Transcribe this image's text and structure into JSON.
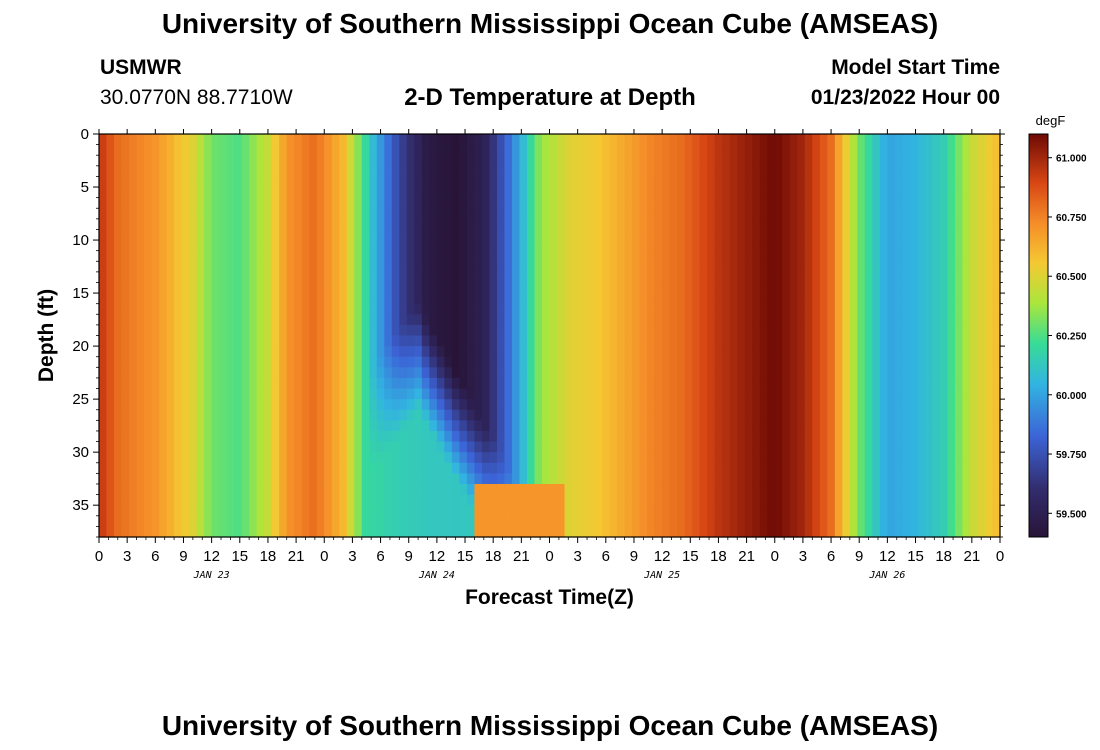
{
  "header": {
    "title": "University of Southern Mississippi Ocean Cube (AMSEAS)",
    "station": "USMWR",
    "coords": "30.0770N  88.7710W",
    "subtitle": "2-D Temperature at Depth",
    "model_start_label": "Model Start Time",
    "model_start_value": "01/23/2022 Hour 00"
  },
  "footer": {
    "title": "University of Southern Mississippi Ocean Cube (AMSEAS)"
  },
  "chart_data": {
    "type": "heatmap",
    "title": "2-D Temperature at Depth",
    "xlabel": "Forecast Time(Z)",
    "ylabel": "Depth (ft)",
    "x_tick_labels": [
      "0",
      "3",
      "6",
      "9",
      "12",
      "15",
      "18",
      "21",
      "0",
      "3",
      "6",
      "9",
      "12",
      "15",
      "18",
      "21",
      "0",
      "3",
      "6",
      "9",
      "12",
      "15",
      "18",
      "21",
      "0",
      "3",
      "6",
      "9",
      "12",
      "15",
      "18",
      "21",
      "0"
    ],
    "x_range_hours": [
      0,
      96
    ],
    "date_labels": [
      {
        "label": "JAN 23",
        "hour": 12
      },
      {
        "label": "JAN 24",
        "hour": 36
      },
      {
        "label": "JAN 25",
        "hour": 60
      },
      {
        "label": "JAN 26",
        "hour": 84
      }
    ],
    "y_tick_labels": [
      "0",
      "5",
      "10",
      "15",
      "20",
      "25",
      "30",
      "35"
    ],
    "y_range_ft": [
      0,
      38
    ],
    "colorbar": {
      "unit": "degF",
      "min": 59.4,
      "max": 61.1,
      "tick_labels": [
        "61.000",
        "60.750",
        "60.500",
        "60.250",
        "60.000",
        "59.750",
        "59.500"
      ],
      "tick_values": [
        61.0,
        60.75,
        60.5,
        60.25,
        60.0,
        59.75,
        59.5
      ]
    },
    "surface_temperature_profile": {
      "hours": [
        0,
        2,
        6,
        10,
        12,
        15,
        18,
        20,
        23,
        26,
        29,
        32,
        35,
        38,
        41,
        44,
        47,
        50,
        53,
        56,
        59,
        62,
        66,
        70,
        72,
        75,
        78,
        81,
        84,
        87,
        90,
        93,
        96
      ],
      "values": [
        60.95,
        60.8,
        60.7,
        60.5,
        60.3,
        60.25,
        60.45,
        60.7,
        60.8,
        60.6,
        60.1,
        59.7,
        59.45,
        59.4,
        59.5,
        59.9,
        60.35,
        60.5,
        60.55,
        60.65,
        60.75,
        60.8,
        60.95,
        61.05,
        61.1,
        61.0,
        60.8,
        60.3,
        60.0,
        60.05,
        60.15,
        60.45,
        60.6
      ]
    }
  }
}
